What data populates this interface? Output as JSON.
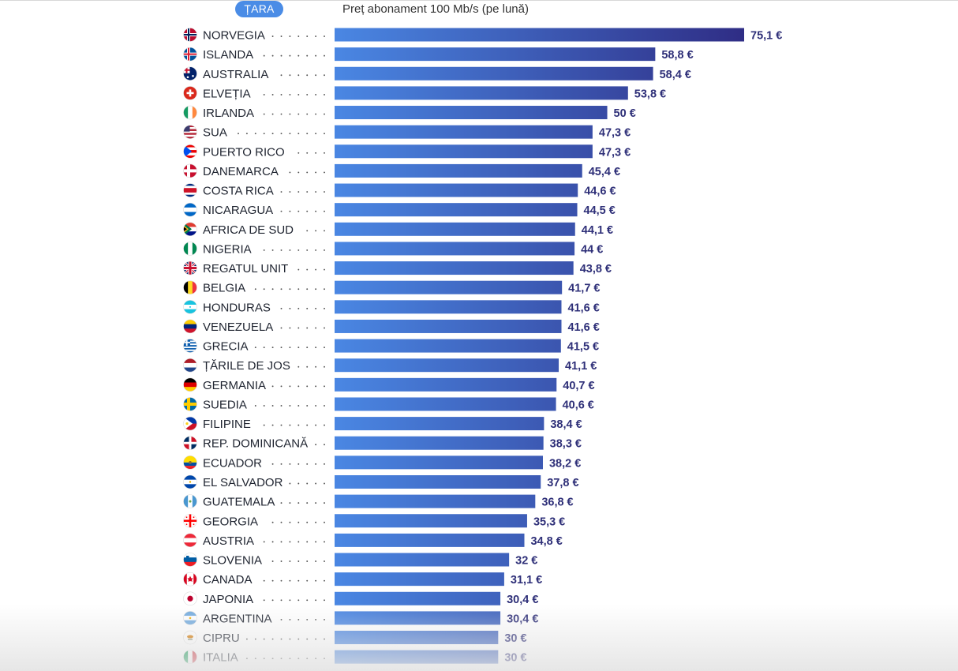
{
  "header": {
    "country_pill": "ȚARA",
    "title": "Preț abonament 100 Mb/s (pe lună)"
  },
  "colors": {
    "bar_start": "#4a87e3",
    "bar_end": "#2f2d85",
    "value_text": "#2e2f78",
    "pill": "#4a8ce6"
  },
  "chart_data": {
    "type": "bar",
    "orientation": "horizontal",
    "title": "Preț abonament 100 Mb/s (pe lună)",
    "xlabel": "",
    "ylabel": "ȚARA",
    "unit": "€",
    "xlim": [
      0,
      75.1
    ],
    "grid": false,
    "legend": "none",
    "categories": [
      "NORVEGIA",
      "ISLANDA",
      "AUSTRALIA",
      "ELVEȚIA",
      "IRLANDA",
      "SUA",
      "PUERTO RICO",
      "DANEMARCA",
      "COSTA RICA",
      "NICARAGUA",
      "AFRICA DE SUD",
      "NIGERIA",
      "REGATUL UNIT",
      "BELGIA",
      "HONDURAS",
      "VENEZUELA",
      "GRECIA",
      "ȚĂRILE DE JOS",
      "GERMANIA",
      "SUEDIA",
      "FILIPINE",
      "REP. DOMINICANĂ",
      "ECUADOR",
      "EL SALVADOR",
      "GUATEMALA",
      "GEORGIA",
      "AUSTRIA",
      "SLOVENIA",
      "CANADA",
      "JAPONIA",
      "ARGENTINA",
      "CIPRU",
      "ITALIA"
    ],
    "values": [
      75.1,
      58.8,
      58.4,
      53.8,
      50,
      47.3,
      47.3,
      45.4,
      44.6,
      44.5,
      44.1,
      44,
      43.8,
      41.7,
      41.6,
      41.6,
      41.5,
      41.1,
      40.7,
      40.6,
      38.4,
      38.3,
      38.2,
      37.8,
      36.8,
      35.3,
      34.8,
      32,
      31.1,
      30.4,
      30.4,
      30,
      30
    ],
    "value_labels": [
      "75,1 €",
      "58,8 €",
      "58,4 €",
      "53,8 €",
      "50 €",
      "47,3 €",
      "47,3 €",
      "45,4 €",
      "44,6 €",
      "44,5 €",
      "44,1 €",
      "44 €",
      "43,8 €",
      "41,7 €",
      "41,6 €",
      "41,6 €",
      "41,5 €",
      "41,1 €",
      "40,7 €",
      "40,6 €",
      "38,4 €",
      "38,3 €",
      "38,2 €",
      "37,8 €",
      "36,8 €",
      "35,3 €",
      "34,8 €",
      "32 €",
      "31,1 €",
      "30,4 €",
      "30,4 €",
      "30 €",
      "30 €"
    ],
    "flag_icons": [
      "norway-flag-icon",
      "iceland-flag-icon",
      "australia-flag-icon",
      "switzerland-flag-icon",
      "ireland-flag-icon",
      "usa-flag-icon",
      "puerto-rico-flag-icon",
      "denmark-flag-icon",
      "costa-rica-flag-icon",
      "nicaragua-flag-icon",
      "south-africa-flag-icon",
      "nigeria-flag-icon",
      "united-kingdom-flag-icon",
      "belgium-flag-icon",
      "honduras-flag-icon",
      "venezuela-flag-icon",
      "greece-flag-icon",
      "netherlands-flag-icon",
      "germany-flag-icon",
      "sweden-flag-icon",
      "philippines-flag-icon",
      "dominican-republic-flag-icon",
      "ecuador-flag-icon",
      "el-salvador-flag-icon",
      "guatemala-flag-icon",
      "georgia-flag-icon",
      "austria-flag-icon",
      "slovenia-flag-icon",
      "canada-flag-icon",
      "japan-flag-icon",
      "argentina-flag-icon",
      "cyprus-flag-icon",
      "italy-flag-icon"
    ]
  }
}
